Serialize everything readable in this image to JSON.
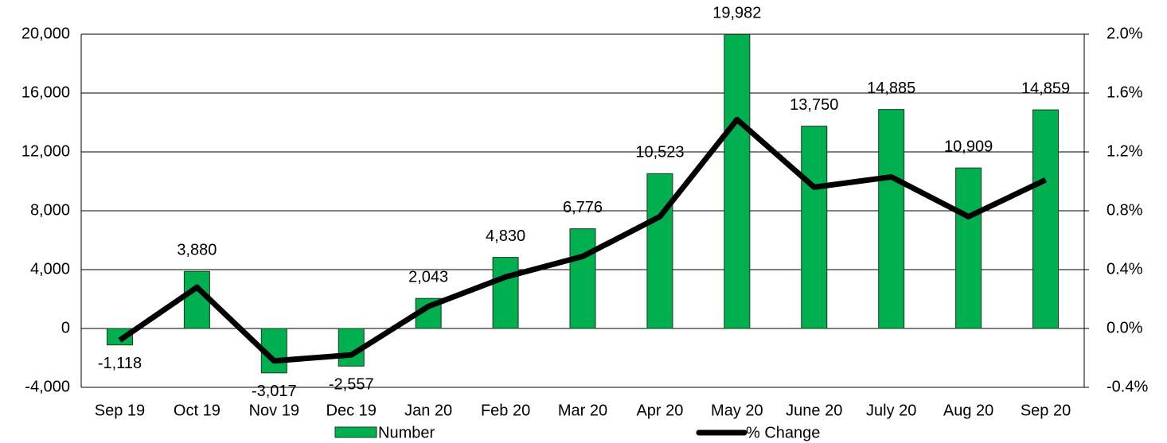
{
  "chart_data": {
    "type": "bar-line",
    "categories": [
      "Sep 19",
      "Oct 19",
      "Nov 19",
      "Dec 19",
      "Jan 20",
      "Feb 20",
      "Mar 20",
      "Apr 20",
      "May 20",
      "June 20",
      "July 20",
      "Aug 20",
      "Sep 20"
    ],
    "series": [
      {
        "name": "Number",
        "type": "bar",
        "color": "#00b050",
        "values": [
          -1118,
          3880,
          -3017,
          -2557,
          2043,
          4830,
          6776,
          10523,
          19982,
          13750,
          14885,
          10909,
          14859
        ],
        "value_labels": [
          "-1,118",
          "3,880",
          "-3,017",
          "-2,557",
          "2,043",
          "4,830",
          "6,776",
          "10,523",
          "19,982",
          "13,750",
          "14,885",
          "10,909",
          "14,859"
        ]
      },
      {
        "name": "% Change",
        "type": "line",
        "color": "#000000",
        "axis": "y2",
        "values": [
          -0.08,
          0.28,
          -0.22,
          -0.18,
          0.15,
          0.35,
          0.49,
          0.76,
          1.42,
          0.96,
          1.03,
          0.76,
          1.01
        ]
      }
    ],
    "ylim": [
      -4000,
      20000
    ],
    "yticks": [
      {
        "value": -4000,
        "label": "-4,000"
      },
      0,
      {
        "value": 4000,
        "label": "4,000"
      },
      {
        "value": 8000,
        "label": "8,000"
      },
      {
        "value": 12000,
        "label": "12,000"
      },
      {
        "value": 16000,
        "label": "16,000"
      },
      {
        "value": 20000,
        "label": "20,000"
      }
    ],
    "y2lim": [
      -0.4,
      2.0
    ],
    "y2ticks": [
      {
        "value": -0.4,
        "label": "-0.4%"
      },
      {
        "value": 0.0,
        "label": "0.0%"
      },
      {
        "value": 0.4,
        "label": "0.4%"
      },
      {
        "value": 0.8,
        "label": "0.8%"
      },
      {
        "value": 1.2,
        "label": "1.2%"
      },
      {
        "value": 1.6,
        "label": "1.6%"
      },
      {
        "value": 2.0,
        "label": "2.0%"
      }
    ],
    "grid": true,
    "legend": "bottom"
  }
}
